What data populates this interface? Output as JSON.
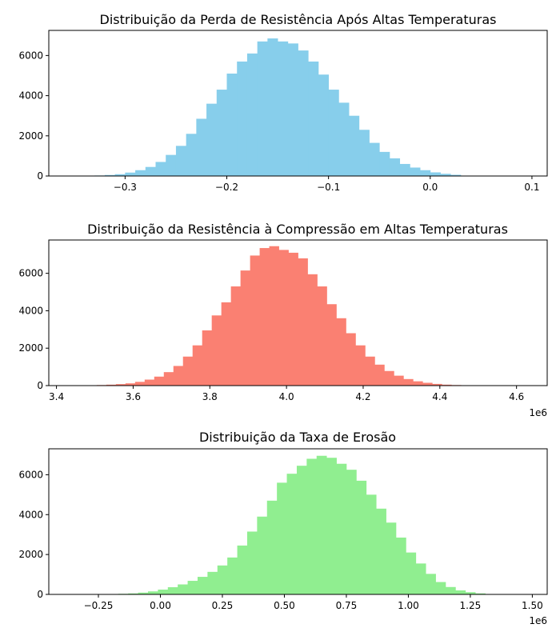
{
  "chart_data": [
    {
      "type": "bar",
      "title": "Distribuição da Perda de Resistência Após Altas Temperaturas",
      "xlabel": "",
      "ylabel": "",
      "xlim": [
        -0.375,
        0.115
      ],
      "ylim": [
        0,
        7250
      ],
      "x_ticks": [
        -0.3,
        -0.2,
        -0.1,
        0.0,
        0.1
      ],
      "x_tick_labels": [
        "−0.3",
        "−0.2",
        "−0.1",
        "0.0",
        "0.1"
      ],
      "y_ticks": [
        0,
        2000,
        4000,
        6000
      ],
      "y_tick_labels": [
        "0",
        "2000",
        "4000",
        "6000"
      ],
      "offset_label": "",
      "color": "#87ceeb",
      "bin_edges": [
        -0.35,
        -0.34,
        -0.33,
        -0.32,
        -0.31,
        -0.3,
        -0.29,
        -0.28,
        -0.27,
        -0.26,
        -0.25,
        -0.24,
        -0.23,
        -0.22,
        -0.21,
        -0.2,
        -0.19,
        -0.18,
        -0.17,
        -0.16,
        -0.15,
        -0.14,
        -0.13,
        -0.12,
        -0.11,
        -0.1,
        -0.09,
        -0.08,
        -0.07,
        -0.06,
        -0.05,
        -0.04,
        -0.03,
        -0.02,
        -0.01,
        0.0,
        0.01,
        0.02,
        0.03
      ],
      "counts": [
        5,
        10,
        25,
        50,
        90,
        170,
        290,
        450,
        700,
        1050,
        1500,
        2100,
        2850,
        3600,
        4300,
        5100,
        5700,
        6100,
        6700,
        6850,
        6700,
        6600,
        6250,
        5700,
        5050,
        4300,
        3650,
        3000,
        2300,
        1650,
        1200,
        880,
        600,
        420,
        290,
        180,
        110,
        60
      ]
    },
    {
      "type": "bar",
      "title": "Distribuição da Resistência à Compressão em Altas Temperaturas",
      "xlabel": "",
      "ylabel": "",
      "xlim": [
        3.38,
        4.68
      ],
      "ylim": [
        0,
        7780
      ],
      "x_ticks": [
        3.4,
        3.6,
        3.8,
        4.0,
        4.2,
        4.4,
        4.6
      ],
      "x_tick_labels": [
        "3.4",
        "3.6",
        "3.8",
        "4.0",
        "4.2",
        "4.4",
        "4.6"
      ],
      "y_ticks": [
        0,
        2000,
        4000,
        6000
      ],
      "y_tick_labels": [
        "0",
        "2000",
        "4000",
        "6000"
      ],
      "offset_label": "1e6",
      "color": "#fa8072",
      "bin_edges": [
        3.43,
        3.455,
        3.48,
        3.505,
        3.53,
        3.555,
        3.58,
        3.605,
        3.63,
        3.655,
        3.68,
        3.705,
        3.73,
        3.755,
        3.78,
        3.805,
        3.83,
        3.855,
        3.88,
        3.905,
        3.93,
        3.955,
        3.98,
        4.005,
        4.03,
        4.055,
        4.08,
        4.105,
        4.13,
        4.155,
        4.18,
        4.205,
        4.23,
        4.255,
        4.28,
        4.305,
        4.33,
        4.355,
        4.38,
        4.405,
        4.43,
        4.455,
        4.48,
        4.505
      ],
      "counts": [
        5,
        10,
        20,
        30,
        50,
        80,
        120,
        200,
        320,
        480,
        720,
        1050,
        1550,
        2150,
        2950,
        3750,
        4450,
        5300,
        6150,
        6950,
        7350,
        7450,
        7250,
        7100,
        6800,
        5950,
        5300,
        4350,
        3600,
        2800,
        2150,
        1550,
        1120,
        780,
        530,
        350,
        230,
        150,
        90,
        50,
        30,
        15,
        5
      ]
    },
    {
      "type": "bar",
      "title": "Distribuição da Taxa de Erosão",
      "xlabel": "",
      "ylabel": "",
      "xlim": [
        -0.45,
        1.56
      ],
      "ylim": [
        0,
        7300
      ],
      "x_ticks": [
        -0.25,
        0.0,
        0.25,
        0.5,
        0.75,
        1.0,
        1.25,
        1.5
      ],
      "x_tick_labels": [
        "−0.25",
        "0.00",
        "0.25",
        "0.50",
        "0.75",
        "1.00",
        "1.25",
        "1.50"
      ],
      "y_ticks": [
        0,
        2000,
        4000,
        6000
      ],
      "y_tick_labels": [
        "0",
        "2000",
        "4000",
        "6000"
      ],
      "offset_label": "1e6",
      "color": "#90ee90",
      "bin_edges": [
        -0.25,
        -0.21,
        -0.17,
        -0.13,
        -0.09,
        -0.05,
        -0.01,
        0.03,
        0.07,
        0.11,
        0.15,
        0.19,
        0.23,
        0.27,
        0.31,
        0.35,
        0.39,
        0.43,
        0.47,
        0.51,
        0.55,
        0.59,
        0.63,
        0.67,
        0.71,
        0.75,
        0.79,
        0.83,
        0.87,
        0.91,
        0.95,
        0.99,
        1.03,
        1.07,
        1.11,
        1.15,
        1.19,
        1.23,
        1.27,
        1.31,
        1.35
      ],
      "counts": [
        5,
        15,
        30,
        50,
        90,
        150,
        240,
        360,
        500,
        680,
        880,
        1130,
        1450,
        1850,
        2450,
        3150,
        3900,
        4700,
        5600,
        6050,
        6450,
        6800,
        6950,
        6850,
        6550,
        6250,
        5700,
        5000,
        4300,
        3600,
        2850,
        2100,
        1550,
        1030,
        620,
        370,
        200,
        110,
        50,
        15
      ]
    }
  ]
}
